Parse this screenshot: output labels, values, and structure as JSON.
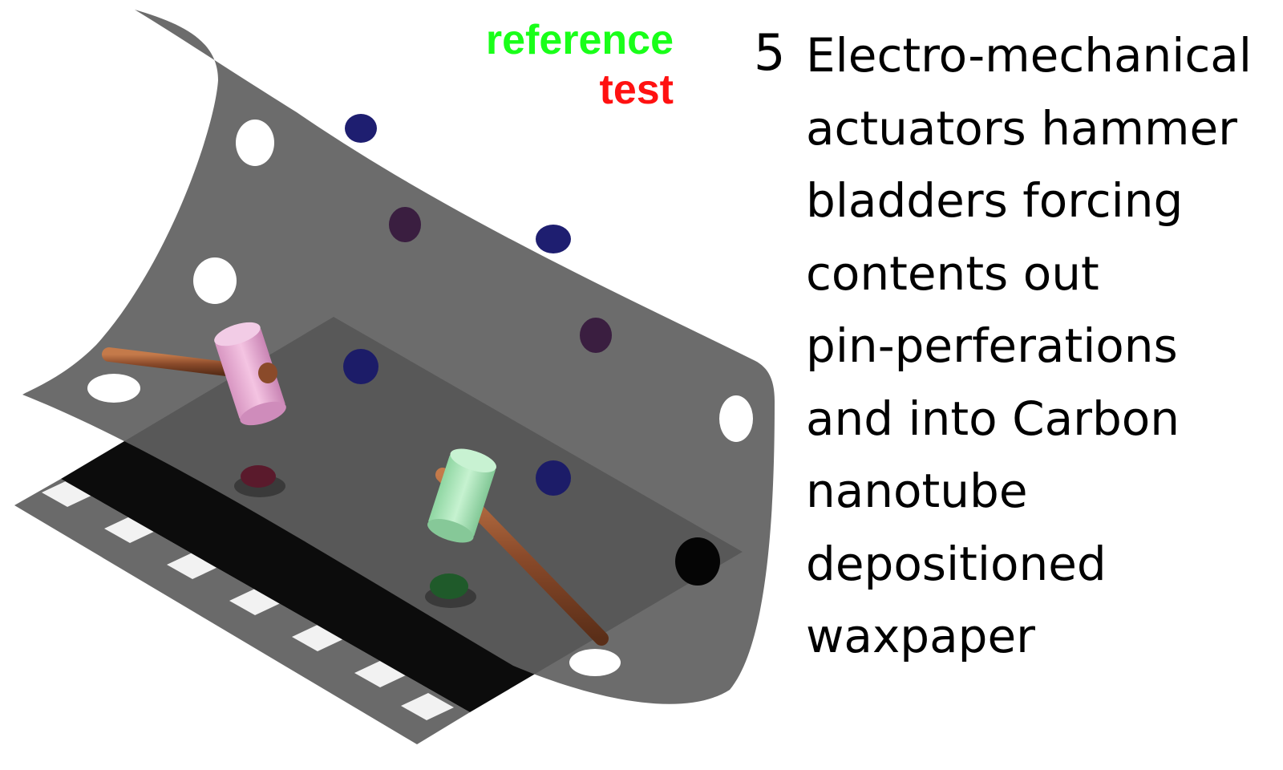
{
  "legend": {
    "reference": {
      "label": "reference",
      "color": "#19ff19"
    },
    "test": {
      "label": "test",
      "color": "#ff1111"
    }
  },
  "step": {
    "number": "5",
    "lines": [
      "Electro-mechanical",
      "actuators hammer",
      "bladders forcing",
      "contents out",
      "pin-perferations",
      "and into Carbon",
      "nanotube",
      "depositioned",
      "waxpaper"
    ]
  },
  "colors": {
    "sheet": "#6e6e6e",
    "board": "#0d0d0d",
    "hammer_handle": "#8a4a2a",
    "test_hammer_head": "#e8a8d0",
    "reference_hammer_head": "#a8e6b8",
    "blue_bladder": "#1e1e70",
    "purple_bladder": "#3a1e40"
  }
}
